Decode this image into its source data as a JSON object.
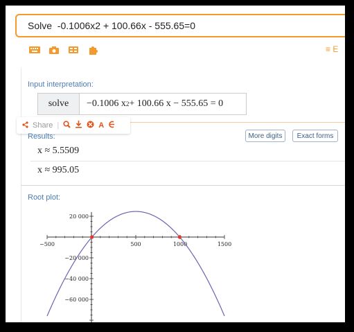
{
  "search": {
    "query": "Solve  -0.1006x2 + 100.66x - 555.65=0"
  },
  "toolbar": {
    "icons": [
      "keyboard-icon",
      "camera-icon",
      "grid-icon",
      "puzzle-icon"
    ],
    "right_label": "≡ E"
  },
  "input_interpretation": {
    "label": "Input interpretation:",
    "command": "solve",
    "expr_prefix": "−0.1006 x",
    "expr_power": "2",
    "expr_suffix": " + 100.66 x − 555.65 = 0"
  },
  "share": {
    "label": "Share",
    "separator": "|"
  },
  "results": {
    "label": "Results:",
    "more_digits": "More digits",
    "exact_forms": "Exact forms",
    "roots": [
      "x ≈ 5.5509",
      "x ≈ 995.05"
    ]
  },
  "root_plot": {
    "label": "Root plot:"
  },
  "chart_data": {
    "type": "line",
    "title": "Root plot",
    "xlabel": "",
    "ylabel": "",
    "xlim": [
      -500,
      1500
    ],
    "ylim": [
      -70000,
      30000
    ],
    "x_ticks": [
      -500,
      500,
      1000,
      1500
    ],
    "x_tick_labels": [
      "−500",
      "500",
      "1000",
      "1500"
    ],
    "y_ticks": [
      20000,
      -20000,
      -40000,
      -60000
    ],
    "y_tick_labels": [
      "20 000",
      "−20 000",
      "−40 000",
      "−60 000"
    ],
    "function": {
      "a": -0.1006,
      "b": 100.66,
      "c": -555.65
    },
    "roots": [
      5.5509,
      995.05
    ],
    "series": [
      {
        "name": "-0.1006x^2 + 100.66x - 555.65",
        "color": "#6e62b0"
      }
    ],
    "root_color": "#e2362e"
  }
}
